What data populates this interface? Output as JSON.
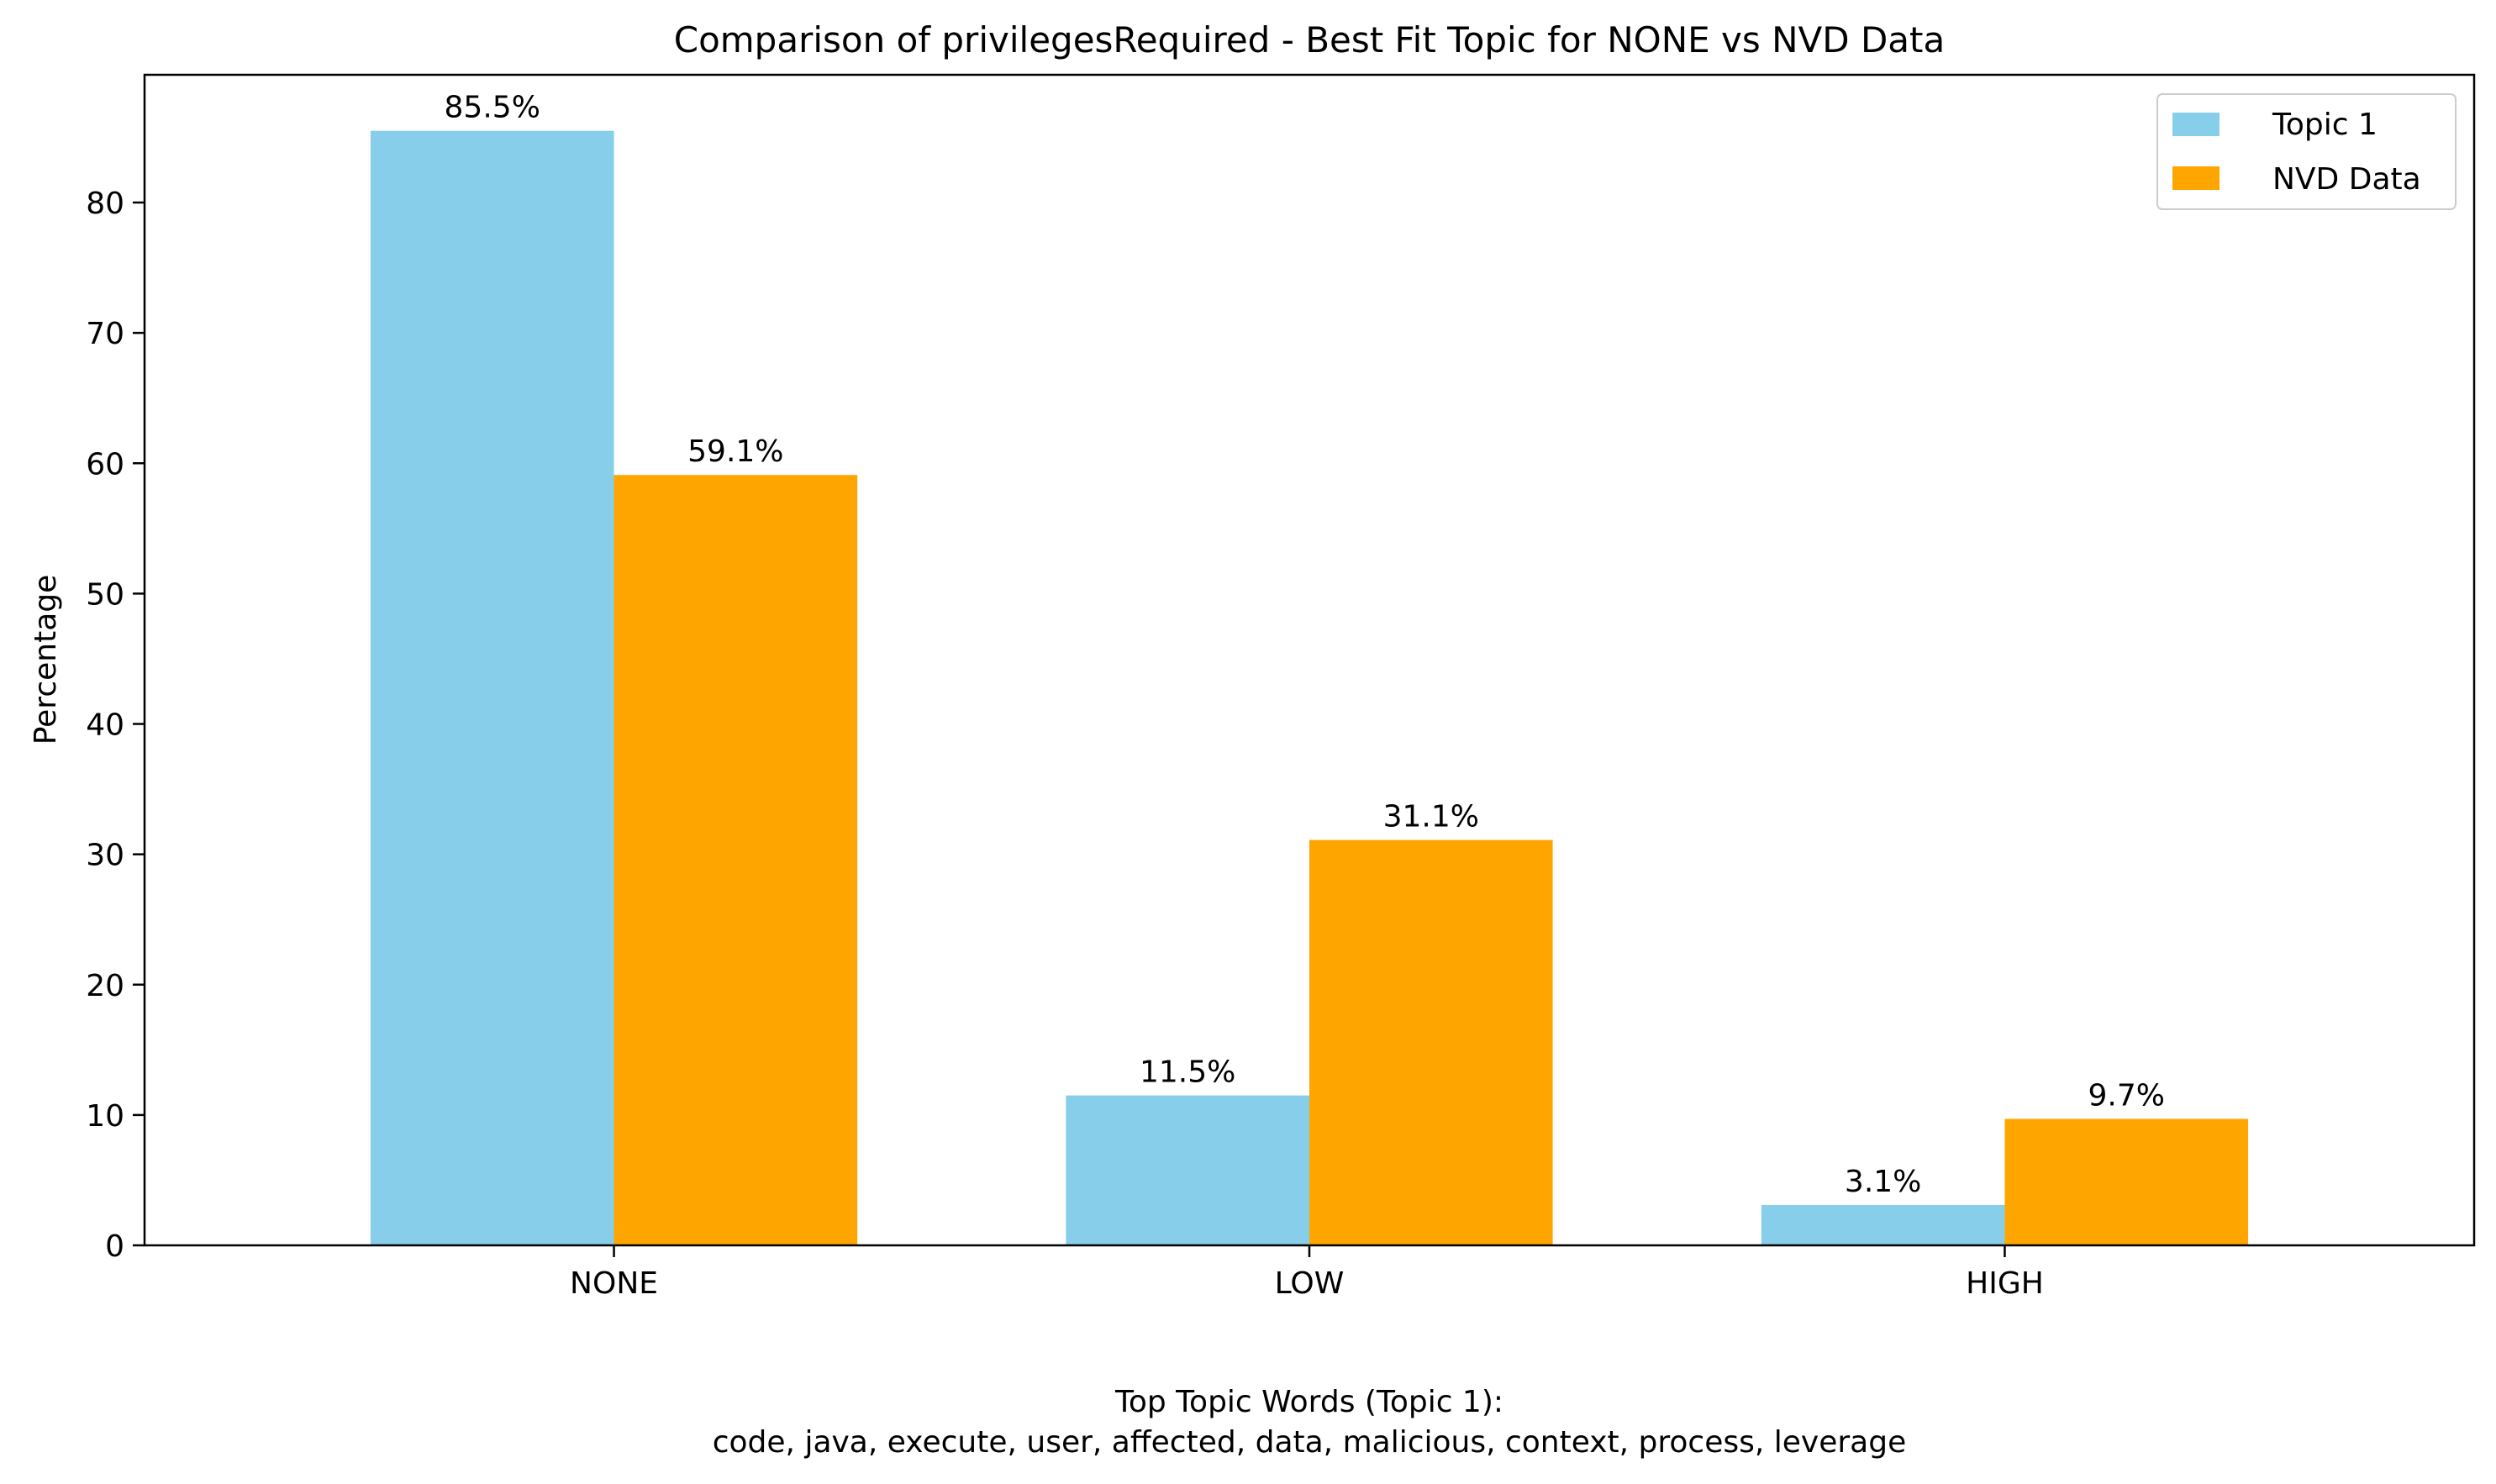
{
  "chart_data": {
    "type": "bar",
    "title": "Comparison of privilegesRequired - Best Fit Topic for NONE vs NVD Data",
    "xlabel_lines": [
      "Top Topic Words (Topic 1):",
      "code,  java,  execute,  user,  affected,  data,  malicious,  context,  process,  leverage"
    ],
    "ylabel": "Percentage",
    "categories": [
      "NONE",
      "LOW",
      "HIGH"
    ],
    "series": [
      {
        "name": "Topic 1",
        "color": "#87CEEB",
        "values": [
          85.5,
          11.5,
          3.1
        ],
        "labels": [
          "85.5%",
          "11.5%",
          "3.1%"
        ]
      },
      {
        "name": "NVD Data",
        "color": "#FFA500",
        "values": [
          59.1,
          31.1,
          9.7
        ],
        "labels": [
          "59.1%",
          "31.1%",
          "9.7%"
        ]
      }
    ],
    "ylim": [
      0,
      89.8
    ],
    "yticks": [
      0,
      10,
      20,
      30,
      40,
      50,
      60,
      70,
      80
    ],
    "grid": false,
    "legend_position": "top-right"
  }
}
